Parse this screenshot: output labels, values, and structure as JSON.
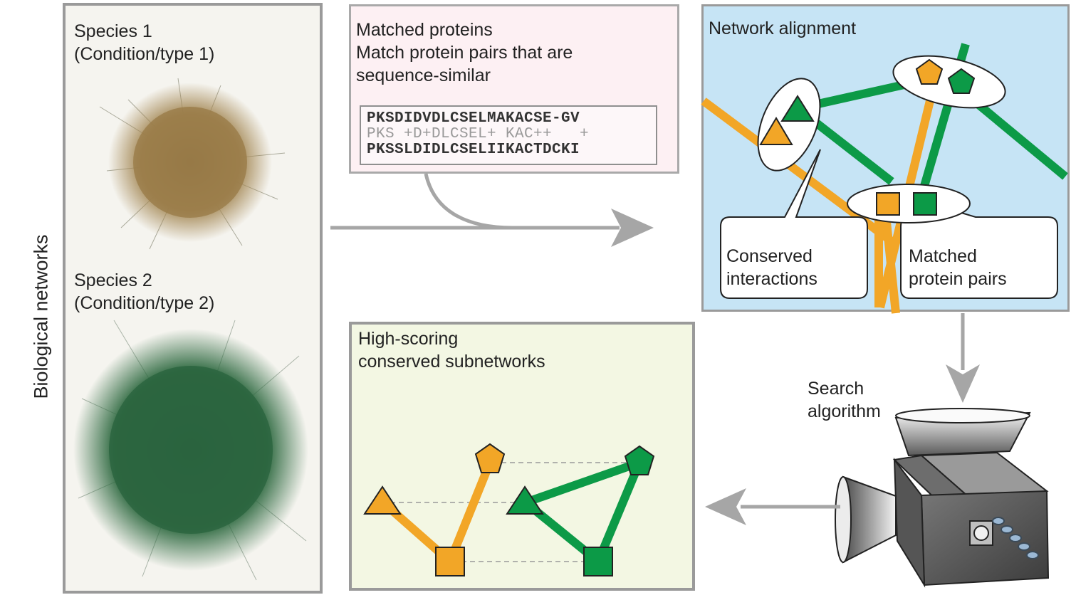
{
  "side_label": "Biological networks",
  "species1": {
    "name": "Species 1",
    "condition": "(Condition/type 1)"
  },
  "species2": {
    "name": "Species 2",
    "condition": "(Condition/type 2)"
  },
  "matched": {
    "title": "Matched proteins",
    "desc_line1": "Match protein pairs that are",
    "desc_line2": "sequence-similar",
    "seq_top": "PKSDIDVDLCSELMAKACSE-GV",
    "seq_mid": "PKS +D+DLCSEL+ KAC++   +",
    "seq_bot": "PKSSLDIDLCSELIIKACTDCKI"
  },
  "alignment": {
    "title": "Network alignment",
    "callout_left_line1": "Conserved",
    "callout_left_line2": "interactions",
    "callout_right_line1": "Matched",
    "callout_right_line2": "protein pairs"
  },
  "search": {
    "line1": "Search",
    "line2": "algorithm"
  },
  "result": {
    "line1": "High-scoring",
    "line2": "conserved subnetworks"
  },
  "colors": {
    "orange": "#f2a627",
    "green": "#0c9a47",
    "network1": "#a48855",
    "network2": "#2f6a41",
    "pink_panel": "#fdf0f3",
    "blue_panel": "#c6e4f5",
    "yellow_panel": "#f3f7e3",
    "gray_panel": "#f5f4ef"
  }
}
